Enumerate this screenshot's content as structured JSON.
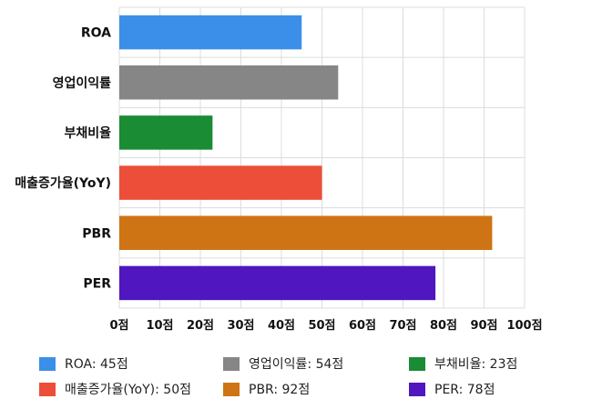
{
  "chart_data": {
    "type": "bar",
    "orientation": "horizontal",
    "categories": [
      "ROA",
      "영업이익률",
      "부채비율",
      "매출증가율(YoY)",
      "PBR",
      "PER"
    ],
    "values": [
      45,
      54,
      23,
      50,
      92,
      78
    ],
    "colors": [
      "#3b8fe8",
      "#868686",
      "#1a8c34",
      "#ec4e3a",
      "#cf7414",
      "#5016c0"
    ],
    "xlim": [
      0,
      100
    ],
    "x_ticks": [
      0,
      10,
      20,
      30,
      40,
      50,
      60,
      70,
      80,
      90,
      100
    ],
    "tick_suffix": "점",
    "grid": true,
    "legend_position": "bottom",
    "legend": [
      {
        "label": "ROA: 45점",
        "color": "#3b8fe8"
      },
      {
        "label": "영업이익률: 54점",
        "color": "#868686"
      },
      {
        "label": "부채비율: 23점",
        "color": "#1a8c34"
      },
      {
        "label": "매출증가율(YoY): 50점",
        "color": "#ec4e3a"
      },
      {
        "label": "PBR: 92점",
        "color": "#cf7414"
      },
      {
        "label": "PER: 78점",
        "color": "#5016c0"
      }
    ]
  }
}
